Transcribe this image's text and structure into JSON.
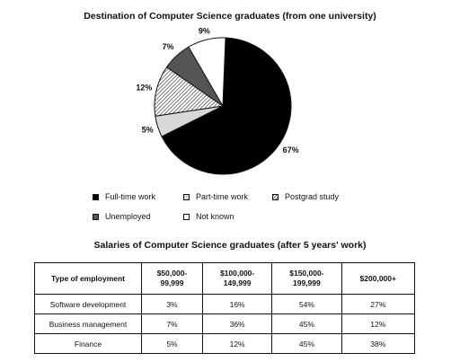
{
  "chart_data": [
    {
      "type": "pie",
      "title": "Destination of Computer Science graduates (from one university)",
      "slices": [
        {
          "label": "Full-time work",
          "value": 67,
          "display": "67%",
          "color": "#000000"
        },
        {
          "label": "Part-time work",
          "value": 5,
          "display": "5%",
          "color": "#d8d8d8"
        },
        {
          "label": "Postgrad study",
          "value": 12,
          "display": "12%",
          "color": "hatched"
        },
        {
          "label": "Unemployed",
          "value": 7,
          "display": "7%",
          "color": "#555555"
        },
        {
          "label": "Not known",
          "value": 9,
          "display": "9%",
          "color": "#ffffff"
        }
      ],
      "legend": [
        "Full-time work",
        "Part-time work",
        "Postgrad study",
        "Unemployed",
        "Not known"
      ],
      "legend_placement": "bottom"
    },
    {
      "type": "table",
      "title": "Salaries of Computer Science graduates (after 5 years' work)",
      "columns": [
        "Type of employment",
        "$50,000-\n99,999",
        "$100,000-\n149,999",
        "$150,000-\n199,999",
        "$200,000+"
      ],
      "rows": [
        [
          "Software development",
          "3%",
          "16%",
          "54%",
          "27%"
        ],
        [
          "Business management",
          "7%",
          "36%",
          "45%",
          "12%"
        ],
        [
          "Finance",
          "5%",
          "12%",
          "45%",
          "38%"
        ]
      ]
    }
  ]
}
